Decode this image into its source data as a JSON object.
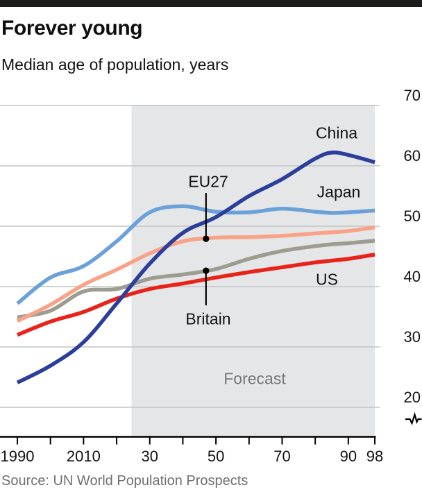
{
  "header": {
    "title": "Forever young",
    "subtitle": "Median age of population, years"
  },
  "source": "Source: UN World Population Prospects",
  "chart_data": {
    "type": "line",
    "title": "Forever young",
    "subtitle": "Median age of population, years",
    "ylabel": "Median age, years",
    "xlim": [
      1990,
      2098
    ],
    "ylim": [
      20,
      70
    ],
    "grid": "horizontal",
    "legend_position": "direct-labels-on-chart",
    "x": [
      1990,
      2000,
      2010,
      2020,
      2030,
      2040,
      2050,
      2060,
      2070,
      2080,
      2085,
      2090,
      2098
    ],
    "series": [
      {
        "name": "China",
        "color": "#2b3e9b",
        "values": [
          24.1,
          26.9,
          30.8,
          37.2,
          43.8,
          48.9,
          51.5,
          55.0,
          57.8,
          61.2,
          62.2,
          61.8,
          60.6
        ]
      },
      {
        "name": "Japan",
        "color": "#6ba1d9",
        "values": [
          37.2,
          41.5,
          43.4,
          47.5,
          52.3,
          53.3,
          52.4,
          52.3,
          52.9,
          52.4,
          52.2,
          52.3,
          52.6
        ]
      },
      {
        "name": "EU27",
        "color": "#f8a388",
        "values": [
          34.3,
          37.0,
          40.3,
          42.8,
          45.5,
          47.5,
          48.1,
          48.2,
          48.4,
          48.8,
          49.0,
          49.2,
          49.8
        ]
      },
      {
        "name": "Britain",
        "color": "#9c9c90",
        "values": [
          34.9,
          36.0,
          39.2,
          39.6,
          41.3,
          42.0,
          42.9,
          44.6,
          45.9,
          46.7,
          47.0,
          47.2,
          47.6
        ]
      },
      {
        "name": "US",
        "color": "#e8231a",
        "values": [
          32.0,
          34.2,
          35.8,
          38.0,
          39.6,
          40.5,
          41.5,
          42.4,
          43.2,
          44.0,
          44.3,
          44.6,
          45.3
        ]
      }
    ],
    "y_ticks": [
      {
        "value": 70,
        "label": "70"
      },
      {
        "value": 60,
        "label": "60"
      },
      {
        "value": 50,
        "label": "50"
      },
      {
        "value": 40,
        "label": "40"
      },
      {
        "value": 30,
        "label": "30"
      },
      {
        "value": 20,
        "label": "20"
      }
    ],
    "x_axis": [
      {
        "year": 1990,
        "label": "1990"
      },
      {
        "year": 2000,
        "label": ""
      },
      {
        "year": 2010,
        "label": "2010"
      },
      {
        "year": 2020,
        "label": ""
      },
      {
        "year": 2030,
        "label": "30"
      },
      {
        "year": 2040,
        "label": ""
      },
      {
        "year": 2050,
        "label": "50"
      },
      {
        "year": 2060,
        "label": ""
      },
      {
        "year": 2070,
        "label": "70"
      },
      {
        "year": 2080,
        "label": ""
      },
      {
        "year": 2090,
        "label": "90"
      },
      {
        "year": 2098,
        "label": "98"
      }
    ],
    "forecast": {
      "label": "Forecast",
      "start_year": 2024.5,
      "end_year": 2098,
      "band_color": "#e5e6e7"
    },
    "annotations": {
      "callouts": [
        {
          "series": "EU27",
          "year": 2047
        },
        {
          "series": "Britain",
          "year": 2047
        }
      ],
      "axis_break": true
    }
  },
  "colors": {
    "top_rule": "#1d1d1b",
    "gridline": "#c2c4c6",
    "axis": "#000000",
    "muted_text": "#6e7073"
  }
}
